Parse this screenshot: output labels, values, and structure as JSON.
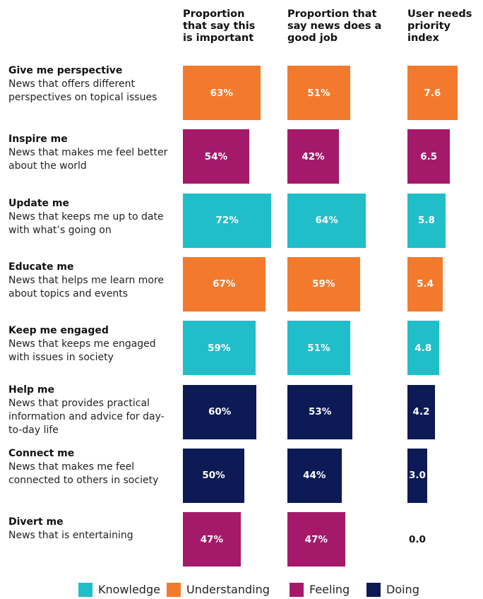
{
  "chart_data": {
    "type": "bar",
    "categories": [
      "Give me perspective",
      "Inspire me",
      "Update me",
      "Educate me",
      "Keep me engaged",
      "Help me",
      "Connect me",
      "Divert me"
    ],
    "descriptions": [
      "News that offers different perspectives on topical issues",
      "News that makes me feel better about the world",
      "News that keeps me up to date with what’s going on",
      "News that helps me learn more about topics and events",
      "News that keeps me engaged with issues in society",
      "News that provides practical information and advice for day-to-day life",
      "News that makes me feel connected to others in society",
      "News that is entertaining"
    ],
    "groups": [
      {
        "name": "Knowledge",
        "color": "#20bec8"
      },
      {
        "name": "Understanding",
        "color": "#f37a2d"
      },
      {
        "name": "Feeling",
        "color": "#a5196b"
      },
      {
        "name": "Doing",
        "color": "#0c1a56"
      }
    ],
    "row_group": [
      1,
      2,
      0,
      1,
      0,
      3,
      3,
      2
    ],
    "series": [
      {
        "name": "Proportion that say this is important",
        "xlim": [
          0,
          100
        ],
        "values": [
          63,
          54,
          72,
          67,
          59,
          60,
          50,
          47
        ],
        "value_labels": [
          "63%",
          "54%",
          "72%",
          "67%",
          "59%",
          "60%",
          "50%",
          "47%"
        ]
      },
      {
        "name": "Proportion that say news does a good job",
        "xlim": [
          0,
          100
        ],
        "values": [
          51,
          42,
          64,
          59,
          51,
          53,
          44,
          47
        ],
        "value_labels": [
          "51%",
          "42%",
          "64%",
          "59%",
          "51%",
          "53%",
          "44%",
          "47%"
        ]
      },
      {
        "name": "User needs priority index",
        "xlim": [
          0,
          10
        ],
        "values": [
          7.6,
          6.5,
          5.8,
          5.4,
          4.8,
          4.2,
          3.0,
          0.0
        ],
        "value_labels": [
          "7.6",
          "6.5",
          "5.8",
          "5.4",
          "4.8",
          "4.2",
          "3.0",
          "0.0"
        ]
      }
    ]
  }
}
